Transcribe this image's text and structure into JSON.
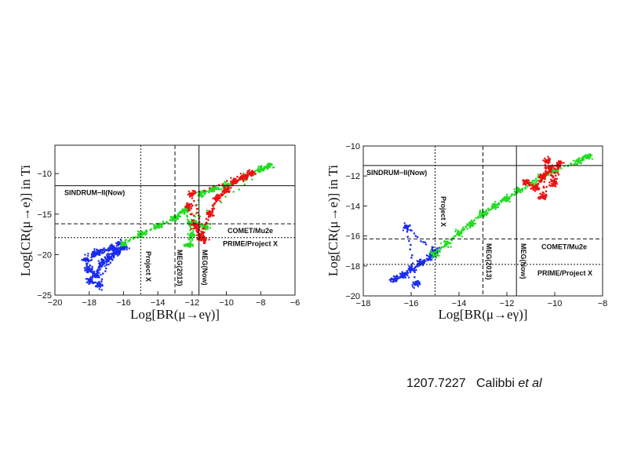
{
  "citation": {
    "id": "1207.7227",
    "author": "Calibbi",
    "etal": "et al"
  },
  "chart_data": [
    {
      "type": "scatter",
      "xlabel": "Log[BR(μ→eγ)]",
      "ylabel": "Log[CR(μ→e)] in Ti",
      "xlim": [
        -20,
        -6
      ],
      "ylim": [
        -25,
        -6.5
      ],
      "xticks": [
        -20,
        -18,
        -16,
        -14,
        -12,
        -10,
        -8,
        -6
      ],
      "yticks": [
        -25,
        -20,
        -15,
        -10
      ],
      "hlines": [
        {
          "y": -11.5,
          "style": "solid",
          "label": "SINDRUM−II(Now)"
        },
        {
          "y": -16.2,
          "style": "dashed",
          "label": "COMET/Mu2e"
        },
        {
          "y": -17.9,
          "style": "dotted",
          "label": "PRIME/Project X"
        }
      ],
      "vlines": [
        {
          "x": -15.0,
          "style": "dotted",
          "label": "Project X"
        },
        {
          "x": -13.0,
          "style": "dashed",
          "label": "MEG(2013)"
        },
        {
          "x": -11.6,
          "style": "solid",
          "label": "MEG(Now)"
        }
      ],
      "series": [
        {
          "color": "#1a2cf0",
          "points": [
            [
              -18.2,
              -20.6
            ],
            [
              -18.0,
              -21.8
            ],
            [
              -17.6,
              -22.5
            ],
            [
              -17.2,
              -21.0
            ],
            [
              -16.8,
              -20.4
            ],
            [
              -16.4,
              -19.7
            ],
            [
              -16.0,
              -19.1
            ],
            [
              -17.8,
              -20.0
            ],
            [
              -17.4,
              -19.6
            ],
            [
              -16.6,
              -19.2
            ],
            [
              -18.0,
              -23.2
            ],
            [
              -17.4,
              -23.8
            ],
            [
              -16.2,
              -18.6
            ]
          ]
        },
        {
          "color": "#22dd22",
          "points": [
            [
              -16.0,
              -18.6
            ],
            [
              -15.0,
              -17.5
            ],
            [
              -14.0,
              -16.5
            ],
            [
              -13.0,
              -15.5
            ],
            [
              -12.4,
              -14.5
            ],
            [
              -12.0,
              -17.5
            ],
            [
              -12.2,
              -18.9
            ],
            [
              -11.5,
              -12.5
            ],
            [
              -10.8,
              -12.0
            ],
            [
              -10.0,
              -11.5
            ],
            [
              -9.0,
              -10.5
            ],
            [
              -8.0,
              -9.5
            ],
            [
              -7.5,
              -9.0
            ],
            [
              -12.0,
              -16.0
            ],
            [
              -11.2,
              -16.5
            ]
          ]
        },
        {
          "color": "#ee1111",
          "points": [
            [
              -12.2,
              -14.0
            ],
            [
              -11.8,
              -16.5
            ],
            [
              -11.5,
              -17.8
            ],
            [
              -11.0,
              -15.0
            ],
            [
              -10.5,
              -13.0
            ],
            [
              -10.0,
              -12.0
            ],
            [
              -9.5,
              -11.0
            ],
            [
              -9.0,
              -10.5
            ],
            [
              -8.5,
              -10.0
            ],
            [
              -12.0,
              -12.5
            ],
            [
              -11.3,
              -18.2
            ]
          ]
        }
      ]
    },
    {
      "type": "scatter",
      "xlabel": "Log[BR(μ→eγ)]",
      "ylabel": "Log[CR(μ→e)] in Ti",
      "xlim": [
        -18,
        -8
      ],
      "ylim": [
        -20,
        -10
      ],
      "xticks": [
        -18,
        -16,
        -14,
        -12,
        -10,
        -8
      ],
      "yticks": [
        -20,
        -18,
        -16,
        -14,
        -12,
        -10
      ],
      "hlines": [
        {
          "y": -11.3,
          "style": "solid",
          "label": "SINDRUM−II(Now)"
        },
        {
          "y": -16.2,
          "style": "dashed",
          "label": "COMET/Mu2e"
        },
        {
          "y": -17.9,
          "style": "dotted",
          "label": "PRIME/Project X"
        }
      ],
      "vlines": [
        {
          "x": -15.0,
          "style": "dotted",
          "label": "Project X"
        },
        {
          "x": -13.0,
          "style": "dashed",
          "label": "MEG(2013)"
        },
        {
          "x": -11.6,
          "style": "solid",
          "label": "MEG(Now)"
        }
      ],
      "series": [
        {
          "color": "#1a2cf0",
          "points": [
            [
              -16.7,
              -18.9
            ],
            [
              -16.3,
              -18.6
            ],
            [
              -16.0,
              -18.2
            ],
            [
              -15.6,
              -17.8
            ],
            [
              -15.2,
              -17.4
            ],
            [
              -15.0,
              -17.0
            ],
            [
              -16.2,
              -15.4
            ],
            [
              -15.8,
              -19.2
            ]
          ]
        },
        {
          "color": "#22dd22",
          "points": [
            [
              -15.0,
              -17.2
            ],
            [
              -14.5,
              -16.5
            ],
            [
              -14.0,
              -15.8
            ],
            [
              -13.5,
              -15.2
            ],
            [
              -13.0,
              -14.5
            ],
            [
              -12.5,
              -14.0
            ],
            [
              -12.0,
              -13.5
            ],
            [
              -11.5,
              -13.0
            ],
            [
              -11.0,
              -12.5
            ],
            [
              -10.5,
              -12.0
            ],
            [
              -10.0,
              -11.7
            ],
            [
              -9.0,
              -11.0
            ],
            [
              -8.6,
              -10.7
            ]
          ]
        },
        {
          "color": "#ee1111",
          "points": [
            [
              -11.2,
              -12.4
            ],
            [
              -10.8,
              -12.8
            ],
            [
              -10.5,
              -12.0
            ],
            [
              -10.2,
              -11.5
            ],
            [
              -10.0,
              -12.5
            ],
            [
              -9.8,
              -11.2
            ],
            [
              -10.5,
              -13.4
            ],
            [
              -10.3,
              -11.0
            ]
          ]
        }
      ]
    }
  ]
}
